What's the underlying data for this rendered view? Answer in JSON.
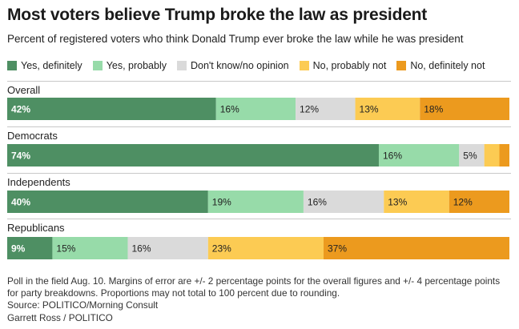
{
  "title": "Most voters believe Trump broke the law as president",
  "subtitle": "Percent of registered voters who think Donald Trump ever broke the law while he was president",
  "note": "Poll in the field Aug. 10. Margins of error are +/- 2 percentage points for the overall figures and +/- 4 percentage points for party breakdowns. Proportions may not total to 100 percent due to rounding.",
  "source": "Source: POLITICO/Morning Consult",
  "credit": "Garrett Ross / POLITICO",
  "chart_data": {
    "type": "bar",
    "orientation": "horizontal-stacked",
    "categories": [
      "Overall",
      "Democrats",
      "Independents",
      "Republicans"
    ],
    "series": [
      {
        "name": "Yes, definitely",
        "color": "#4e8f63",
        "values": [
          42,
          74,
          40,
          9
        ],
        "labels": [
          "42%",
          "74%",
          "40%",
          "9%"
        ]
      },
      {
        "name": "Yes, probably",
        "color": "#97dba9",
        "values": [
          16,
          16,
          19,
          15
        ],
        "labels": [
          "16%",
          "16%",
          "19%",
          "15%"
        ]
      },
      {
        "name": "Don't know/no opinion",
        "color": "#dadada",
        "values": [
          12,
          5,
          16,
          16
        ],
        "labels": [
          "12%",
          "5%",
          "16%",
          "16%"
        ]
      },
      {
        "name": "No, probably not",
        "color": "#fccb53",
        "values": [
          13,
          3,
          13,
          23
        ],
        "labels": [
          "13%",
          "",
          "13%",
          "23%"
        ]
      },
      {
        "name": "No, definitely not",
        "color": "#ec9a1e",
        "values": [
          18,
          2,
          12,
          37
        ],
        "labels": [
          "18%",
          "",
          "12%",
          "37%"
        ]
      }
    ],
    "xlim": [
      0,
      100
    ],
    "grid": false,
    "legend": "top"
  }
}
